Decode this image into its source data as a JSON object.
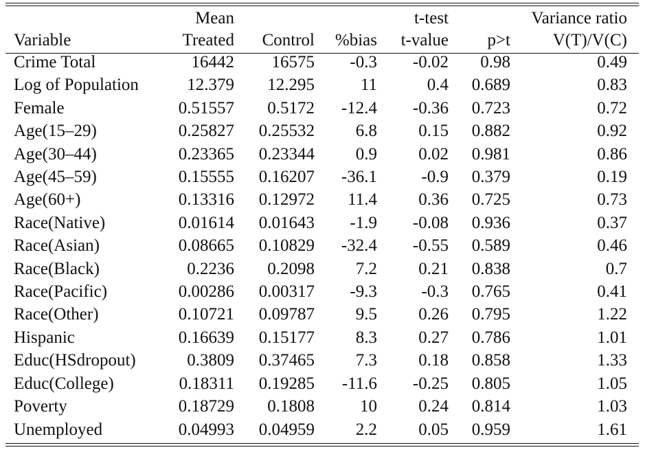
{
  "header": {
    "row1": {
      "mean": "Mean",
      "ttest": "t-test",
      "variance_ratio": "Variance ratio"
    },
    "row2": {
      "variable": "Variable",
      "treated": "Treated",
      "control": "Control",
      "bias": "%bias",
      "tvalue": "t-value",
      "pvalue": "p>t",
      "vratio": "V(T)/V(C)"
    }
  },
  "rows": [
    {
      "variable": "Crime Total",
      "treated": "16442",
      "control": "16575",
      "bias": "-0.3",
      "tvalue": "-0.02",
      "pvalue": "0.98",
      "vratio": "0.49"
    },
    {
      "variable": "Log of Population",
      "treated": "12.379",
      "control": "12.295",
      "bias": "11",
      "tvalue": "0.4",
      "pvalue": "0.689",
      "vratio": "0.83"
    },
    {
      "variable": "Female",
      "treated": "0.51557",
      "control": "0.5172",
      "bias": "-12.4",
      "tvalue": "-0.36",
      "pvalue": "0.723",
      "vratio": "0.72"
    },
    {
      "variable": "Age(15–29)",
      "treated": "0.25827",
      "control": "0.25532",
      "bias": "6.8",
      "tvalue": "0.15",
      "pvalue": "0.882",
      "vratio": "0.92"
    },
    {
      "variable": "Age(30–44)",
      "treated": "0.23365",
      "control": "0.23344",
      "bias": "0.9",
      "tvalue": "0.02",
      "pvalue": "0.981",
      "vratio": "0.86"
    },
    {
      "variable": "Age(45–59)",
      "treated": "0.15555",
      "control": "0.16207",
      "bias": "-36.1",
      "tvalue": "-0.9",
      "pvalue": "0.379",
      "vratio": "0.19"
    },
    {
      "variable": "Age(60+)",
      "treated": "0.13316",
      "control": "0.12972",
      "bias": "11.4",
      "tvalue": "0.36",
      "pvalue": "0.725",
      "vratio": "0.73"
    },
    {
      "variable": "Race(Native)",
      "treated": "0.01614",
      "control": "0.01643",
      "bias": "-1.9",
      "tvalue": "-0.08",
      "pvalue": "0.936",
      "vratio": "0.37"
    },
    {
      "variable": "Race(Asian)",
      "treated": "0.08665",
      "control": "0.10829",
      "bias": "-32.4",
      "tvalue": "-0.55",
      "pvalue": "0.589",
      "vratio": "0.46"
    },
    {
      "variable": "Race(Black)",
      "treated": "0.2236",
      "control": "0.2098",
      "bias": "7.2",
      "tvalue": "0.21",
      "pvalue": "0.838",
      "vratio": "0.7"
    },
    {
      "variable": "Race(Pacific)",
      "treated": "0.00286",
      "control": "0.00317",
      "bias": "-9.3",
      "tvalue": "-0.3",
      "pvalue": "0.765",
      "vratio": "0.41"
    },
    {
      "variable": "Race(Other)",
      "treated": "0.10721",
      "control": "0.09787",
      "bias": "9.5",
      "tvalue": "0.26",
      "pvalue": "0.795",
      "vratio": "1.22"
    },
    {
      "variable": "Hispanic",
      "treated": "0.16639",
      "control": "0.15177",
      "bias": "8.3",
      "tvalue": "0.27",
      "pvalue": "0.786",
      "vratio": "1.01"
    },
    {
      "variable": "Educ(HSdropout)",
      "treated": "0.3809",
      "control": "0.37465",
      "bias": "7.3",
      "tvalue": "0.18",
      "pvalue": "0.858",
      "vratio": "1.33"
    },
    {
      "variable": "Educ(College)",
      "treated": "0.18311",
      "control": "0.19285",
      "bias": "-11.6",
      "tvalue": "-0.25",
      "pvalue": "0.805",
      "vratio": "1.05"
    },
    {
      "variable": "Poverty",
      "treated": "0.18729",
      "control": "0.1808",
      "bias": "10",
      "tvalue": "0.24",
      "pvalue": "0.814",
      "vratio": "1.03"
    },
    {
      "variable": "Unemployed",
      "treated": "0.04993",
      "control": "0.04959",
      "bias": "2.2",
      "tvalue": "0.05",
      "pvalue": "0.959",
      "vratio": "1.61"
    }
  ]
}
